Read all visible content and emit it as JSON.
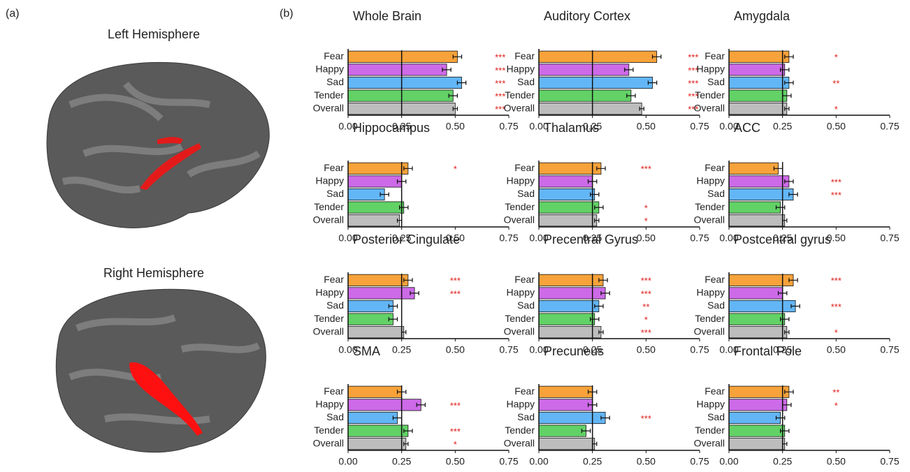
{
  "figure": {
    "panel_a_label": "(a)",
    "panel_b_label": "(b)",
    "left_title": "Left Hemisphere",
    "right_title": "Right Hemisphere"
  },
  "chart_data": [
    {
      "type": "bar",
      "title": "Whole Brain",
      "categories": [
        "Fear",
        "Happy",
        "Sad",
        "Tender",
        "Overall"
      ],
      "values": [
        0.51,
        0.46,
        0.53,
        0.49,
        0.5
      ],
      "errors": [
        0.02,
        0.02,
        0.02,
        0.02,
        0.01
      ],
      "annotations": [
        "***",
        "***",
        "***",
        "***",
        "***"
      ],
      "annotation_x": 0.71,
      "colors": [
        "#f7a23a",
        "#cd6ae8",
        "#63b6f6",
        "#62d166",
        "#bdbdbd"
      ],
      "reference_line": 0.25,
      "xlim": [
        0,
        0.75
      ],
      "xticks": [
        {
          "value": 0,
          "label": "0.00"
        },
        {
          "value": 0.25,
          "label": "0.25"
        },
        {
          "value": 0.5,
          "label": "0.50"
        },
        {
          "value": 0.75,
          "label": "0.75"
        }
      ]
    },
    {
      "type": "bar",
      "title": "Auditory Cortex",
      "categories": [
        "Fear",
        "Happy",
        "Sad",
        "Tender",
        "Overall"
      ],
      "values": [
        0.55,
        0.42,
        0.53,
        0.43,
        0.48
      ],
      "errors": [
        0.02,
        0.02,
        0.02,
        0.02,
        0.01
      ],
      "annotations": [
        "***",
        "***",
        "***",
        "***",
        "***"
      ],
      "annotation_x": 0.72,
      "colors": [
        "#f7a23a",
        "#cd6ae8",
        "#63b6f6",
        "#62d166",
        "#bdbdbd"
      ],
      "reference_line": 0.25,
      "xlim": [
        0,
        0.75
      ],
      "xticks": [
        {
          "value": 0,
          "label": "0.00"
        },
        {
          "value": 0.25,
          "label": "0.25"
        },
        {
          "value": 0.5,
          "label": "0.50"
        },
        {
          "value": 0.75,
          "label": "0.75"
        }
      ]
    },
    {
      "type": "bar",
      "title": "Amygdala",
      "categories": [
        "Fear",
        "Happy",
        "Sad",
        "Tender",
        "Overall"
      ],
      "values": [
        0.28,
        0.26,
        0.28,
        0.27,
        0.27
      ],
      "errors": [
        0.02,
        0.02,
        0.02,
        0.02,
        0.01
      ],
      "annotations": [
        "*",
        null,
        "**",
        null,
        "*"
      ],
      "annotation_x": 0.5,
      "colors": [
        "#f7a23a",
        "#cd6ae8",
        "#63b6f6",
        "#62d166",
        "#bdbdbd"
      ],
      "reference_line": 0.25,
      "xlim": [
        0,
        0.75
      ],
      "xticks": [
        {
          "value": 0,
          "label": "0.00"
        },
        {
          "value": 0.25,
          "label": "0.25"
        },
        {
          "value": 0.5,
          "label": "0.50"
        },
        {
          "value": 0.75,
          "label": "0.75"
        }
      ]
    },
    {
      "type": "bar",
      "title": "Hippocampus",
      "categories": [
        "Fear",
        "Happy",
        "Sad",
        "Tender",
        "Overall"
      ],
      "values": [
        0.28,
        0.25,
        0.17,
        0.26,
        0.24
      ],
      "errors": [
        0.02,
        0.02,
        0.02,
        0.02,
        0.01
      ],
      "annotations": [
        "*",
        null,
        null,
        null,
        null
      ],
      "annotation_x": 0.5,
      "colors": [
        "#f7a23a",
        "#cd6ae8",
        "#63b6f6",
        "#62d166",
        "#bdbdbd"
      ],
      "reference_line": 0.25,
      "xlim": [
        0,
        0.75
      ],
      "xticks": [
        {
          "value": 0,
          "label": "0.00"
        },
        {
          "value": 0.25,
          "label": "0.25"
        },
        {
          "value": 0.5,
          "label": "0.50"
        },
        {
          "value": 0.75,
          "label": "0.75"
        }
      ]
    },
    {
      "type": "bar",
      "title": "Thalamus",
      "categories": [
        "Fear",
        "Happy",
        "Sad",
        "Tender",
        "Overall"
      ],
      "values": [
        0.29,
        0.25,
        0.26,
        0.28,
        0.27
      ],
      "errors": [
        0.02,
        0.02,
        0.02,
        0.02,
        0.01
      ],
      "annotations": [
        "***",
        null,
        null,
        "*",
        "*"
      ],
      "annotation_x": 0.5,
      "colors": [
        "#f7a23a",
        "#cd6ae8",
        "#63b6f6",
        "#62d166",
        "#bdbdbd"
      ],
      "reference_line": 0.25,
      "xlim": [
        0,
        0.75
      ],
      "xticks": [
        {
          "value": 0,
          "label": "0.00"
        },
        {
          "value": 0.25,
          "label": "0.25"
        },
        {
          "value": 0.5,
          "label": "0.50"
        },
        {
          "value": 0.75,
          "label": "0.75"
        }
      ]
    },
    {
      "type": "bar",
      "title": "ACC",
      "categories": [
        "Fear",
        "Happy",
        "Sad",
        "Tender",
        "Overall"
      ],
      "values": [
        0.23,
        0.28,
        0.3,
        0.24,
        0.26
      ],
      "errors": [
        0.02,
        0.02,
        0.02,
        0.02,
        0.01
      ],
      "annotations": [
        null,
        "***",
        "***",
        null,
        null
      ],
      "annotation_x": 0.5,
      "colors": [
        "#f7a23a",
        "#cd6ae8",
        "#63b6f6",
        "#62d166",
        "#bdbdbd"
      ],
      "reference_line": 0.25,
      "xlim": [
        0,
        0.75
      ],
      "xticks": [
        {
          "value": 0,
          "label": "0.00"
        },
        {
          "value": 0.25,
          "label": "0.25"
        },
        {
          "value": 0.5,
          "label": "0.50"
        },
        {
          "value": 0.75,
          "label": "0.75"
        }
      ]
    },
    {
      "type": "bar",
      "title": "Posterior Cingulate",
      "categories": [
        "Fear",
        "Happy",
        "Sad",
        "Tender",
        "Overall"
      ],
      "values": [
        0.28,
        0.31,
        0.21,
        0.21,
        0.26
      ],
      "errors": [
        0.02,
        0.02,
        0.02,
        0.02,
        0.01
      ],
      "annotations": [
        "***",
        "***",
        null,
        null,
        null
      ],
      "annotation_x": 0.5,
      "colors": [
        "#f7a23a",
        "#cd6ae8",
        "#63b6f6",
        "#62d166",
        "#bdbdbd"
      ],
      "reference_line": 0.25,
      "xlim": [
        0,
        0.75
      ],
      "xticks": [
        {
          "value": 0,
          "label": "0.00"
        },
        {
          "value": 0.25,
          "label": "0.25"
        },
        {
          "value": 0.5,
          "label": "0.50"
        },
        {
          "value": 0.75,
          "label": "0.75"
        }
      ]
    },
    {
      "type": "bar",
      "title": "Precentral Gyrus",
      "categories": [
        "Fear",
        "Happy",
        "Sad",
        "Tender",
        "Overall"
      ],
      "values": [
        0.3,
        0.31,
        0.28,
        0.26,
        0.29
      ],
      "errors": [
        0.02,
        0.02,
        0.02,
        0.02,
        0.01
      ],
      "annotations": [
        "***",
        "***",
        "**",
        "*",
        "***"
      ],
      "annotation_x": 0.5,
      "colors": [
        "#f7a23a",
        "#cd6ae8",
        "#63b6f6",
        "#62d166",
        "#bdbdbd"
      ],
      "reference_line": 0.25,
      "xlim": [
        0,
        0.75
      ],
      "xticks": [
        {
          "value": 0,
          "label": "0.00"
        },
        {
          "value": 0.25,
          "label": "0.25"
        },
        {
          "value": 0.5,
          "label": "0.50"
        },
        {
          "value": 0.75,
          "label": "0.75"
        }
      ]
    },
    {
      "type": "bar",
      "title": "Postcentral gyrus",
      "categories": [
        "Fear",
        "Happy",
        "Sad",
        "Tender",
        "Overall"
      ],
      "values": [
        0.3,
        0.25,
        0.31,
        0.26,
        0.27
      ],
      "errors": [
        0.02,
        0.02,
        0.02,
        0.02,
        0.01
      ],
      "annotations": [
        "***",
        null,
        "***",
        null,
        "*"
      ],
      "annotation_x": 0.5,
      "colors": [
        "#f7a23a",
        "#cd6ae8",
        "#63b6f6",
        "#62d166",
        "#bdbdbd"
      ],
      "reference_line": 0.25,
      "xlim": [
        0,
        0.75
      ],
      "xticks": [
        {
          "value": 0,
          "label": "0.00"
        },
        {
          "value": 0.25,
          "label": "0.25"
        },
        {
          "value": 0.5,
          "label": "0.50"
        },
        {
          "value": 0.75,
          "label": "0.75"
        }
      ]
    },
    {
      "type": "bar",
      "title": "SMA",
      "categories": [
        "Fear",
        "Happy",
        "Sad",
        "Tender",
        "Overall"
      ],
      "values": [
        0.25,
        0.34,
        0.23,
        0.28,
        0.27
      ],
      "errors": [
        0.02,
        0.02,
        0.02,
        0.02,
        0.01
      ],
      "annotations": [
        null,
        "***",
        null,
        "***",
        "*"
      ],
      "annotation_x": 0.5,
      "colors": [
        "#f7a23a",
        "#cd6ae8",
        "#63b6f6",
        "#62d166",
        "#bdbdbd"
      ],
      "reference_line": 0.25,
      "xlim": [
        0,
        0.75
      ],
      "xticks": [
        {
          "value": 0,
          "label": "0.00"
        },
        {
          "value": 0.25,
          "label": "0.25"
        },
        {
          "value": 0.5,
          "label": "0.50"
        },
        {
          "value": 0.75,
          "label": "0.75"
        }
      ]
    },
    {
      "type": "bar",
      "title": "Precuneus",
      "categories": [
        "Fear",
        "Happy",
        "Sad",
        "Tender",
        "Overall"
      ],
      "values": [
        0.25,
        0.25,
        0.31,
        0.22,
        0.26
      ],
      "errors": [
        0.02,
        0.02,
        0.02,
        0.02,
        0.01
      ],
      "annotations": [
        null,
        null,
        "***",
        null,
        null
      ],
      "annotation_x": 0.5,
      "colors": [
        "#f7a23a",
        "#cd6ae8",
        "#63b6f6",
        "#62d166",
        "#bdbdbd"
      ],
      "reference_line": 0.25,
      "xlim": [
        0,
        0.75
      ],
      "xticks": [
        {
          "value": 0,
          "label": "0.00"
        },
        {
          "value": 0.25,
          "label": "0.25"
        },
        {
          "value": 0.5,
          "label": "0.50"
        },
        {
          "value": 0.75,
          "label": "0.75"
        }
      ]
    },
    {
      "type": "bar",
      "title": "Frontal Pole",
      "categories": [
        "Fear",
        "Happy",
        "Sad",
        "Tender",
        "Overall"
      ],
      "values": [
        0.28,
        0.27,
        0.24,
        0.26,
        0.26
      ],
      "errors": [
        0.02,
        0.02,
        0.02,
        0.02,
        0.01
      ],
      "annotations": [
        "**",
        "*",
        null,
        null,
        null
      ],
      "annotation_x": 0.5,
      "colors": [
        "#f7a23a",
        "#cd6ae8",
        "#63b6f6",
        "#62d166",
        "#bdbdbd"
      ],
      "reference_line": 0.25,
      "xlim": [
        0,
        0.75
      ],
      "xticks": [
        {
          "value": 0,
          "label": "0.00"
        },
        {
          "value": 0.25,
          "label": "0.25"
        },
        {
          "value": 0.5,
          "label": "0.50"
        },
        {
          "value": 0.75,
          "label": "0.75"
        }
      ]
    }
  ]
}
